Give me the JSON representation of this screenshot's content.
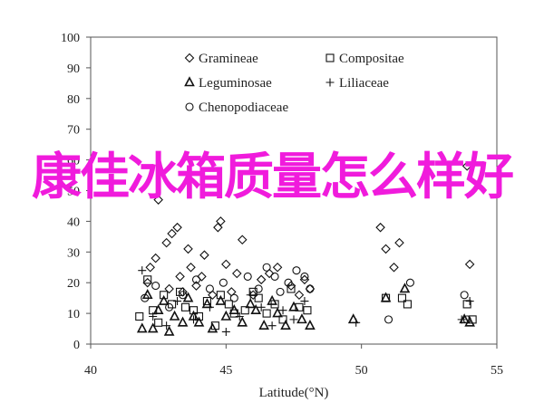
{
  "overlay_title": "康佳冰箱质量怎么样好",
  "chart_data": {
    "type": "scatter",
    "title": "",
    "xlabel": "Latitude(°N)",
    "ylabel": "",
    "xlim": [
      40,
      55
    ],
    "ylim": [
      0,
      100
    ],
    "xticks": [
      "40",
      "45",
      "50",
      "55"
    ],
    "yticks": [
      "0",
      "10",
      "20",
      "30",
      "40",
      "50",
      "60",
      "70",
      "80",
      "90",
      "100"
    ],
    "grid": false,
    "legend_placement": "top-left",
    "series": [
      {
        "name": "Gramineae",
        "marker": "diamond",
        "points": [
          [
            42.1,
            20
          ],
          [
            42.2,
            25
          ],
          [
            42.4,
            28
          ],
          [
            42.5,
            47
          ],
          [
            42.8,
            33
          ],
          [
            42.9,
            18
          ],
          [
            43.0,
            36
          ],
          [
            43.2,
            38
          ],
          [
            43.3,
            22
          ],
          [
            43.4,
            17
          ],
          [
            43.6,
            31
          ],
          [
            43.7,
            25
          ],
          [
            43.9,
            19
          ],
          [
            44.1,
            22
          ],
          [
            44.2,
            29
          ],
          [
            44.5,
            16
          ],
          [
            44.7,
            38
          ],
          [
            44.8,
            40
          ],
          [
            45.0,
            26
          ],
          [
            45.2,
            17
          ],
          [
            45.4,
            23
          ],
          [
            45.6,
            34
          ],
          [
            46.0,
            16
          ],
          [
            46.3,
            21
          ],
          [
            46.6,
            23
          ],
          [
            46.9,
            25
          ],
          [
            47.4,
            19
          ],
          [
            47.7,
            16
          ],
          [
            47.9,
            21
          ],
          [
            48.1,
            18
          ],
          [
            50.7,
            38
          ],
          [
            50.9,
            31
          ],
          [
            51.2,
            25
          ],
          [
            51.4,
            33
          ],
          [
            53.9,
            58
          ],
          [
            54.0,
            26
          ]
        ]
      },
      {
        "name": "Compositae",
        "marker": "square",
        "points": [
          [
            41.8,
            9
          ],
          [
            42.1,
            21
          ],
          [
            42.3,
            11
          ],
          [
            42.5,
            7
          ],
          [
            42.7,
            16
          ],
          [
            43.0,
            13
          ],
          [
            43.3,
            17
          ],
          [
            43.5,
            12
          ],
          [
            43.8,
            11
          ],
          [
            44.0,
            9
          ],
          [
            44.3,
            14
          ],
          [
            44.6,
            6
          ],
          [
            44.8,
            16
          ],
          [
            45.1,
            13
          ],
          [
            45.3,
            10
          ],
          [
            45.7,
            11
          ],
          [
            46.0,
            17
          ],
          [
            46.2,
            15
          ],
          [
            46.5,
            10
          ],
          [
            46.8,
            13
          ],
          [
            47.1,
            8
          ],
          [
            47.4,
            18
          ],
          [
            47.7,
            12
          ],
          [
            48.0,
            11
          ],
          [
            50.9,
            15
          ],
          [
            51.5,
            15
          ],
          [
            51.7,
            13
          ],
          [
            53.9,
            13
          ],
          [
            54.1,
            8
          ]
        ]
      },
      {
        "name": "Leguminosae",
        "marker": "triangle",
        "points": [
          [
            41.9,
            5
          ],
          [
            42.1,
            16
          ],
          [
            42.3,
            5
          ],
          [
            42.5,
            11
          ],
          [
            42.7,
            14
          ],
          [
            42.9,
            4
          ],
          [
            43.1,
            9
          ],
          [
            43.4,
            7
          ],
          [
            43.6,
            15
          ],
          [
            43.8,
            9
          ],
          [
            44.0,
            7
          ],
          [
            44.3,
            13
          ],
          [
            44.5,
            5
          ],
          [
            44.8,
            14
          ],
          [
            45.0,
            9
          ],
          [
            45.3,
            11
          ],
          [
            45.6,
            7
          ],
          [
            45.9,
            13
          ],
          [
            46.1,
            11
          ],
          [
            46.4,
            6
          ],
          [
            46.7,
            14
          ],
          [
            46.9,
            10
          ],
          [
            47.2,
            6
          ],
          [
            47.5,
            12
          ],
          [
            47.8,
            8
          ],
          [
            48.1,
            6
          ],
          [
            49.7,
            8
          ],
          [
            50.9,
            15
          ],
          [
            51.6,
            18
          ],
          [
            53.8,
            8
          ],
          [
            54.0,
            7
          ]
        ]
      },
      {
        "name": "Liliaceae",
        "marker": "plus",
        "points": [
          [
            41.9,
            24
          ],
          [
            42.3,
            9
          ],
          [
            42.8,
            6
          ],
          [
            43.2,
            14
          ],
          [
            43.8,
            8
          ],
          [
            44.4,
            12
          ],
          [
            45.0,
            4
          ],
          [
            45.5,
            9
          ],
          [
            45.9,
            16
          ],
          [
            46.3,
            12
          ],
          [
            46.7,
            6
          ],
          [
            47.1,
            11
          ],
          [
            47.5,
            8
          ],
          [
            47.9,
            14
          ],
          [
            49.8,
            7
          ],
          [
            53.7,
            8
          ],
          [
            54.0,
            14
          ]
        ]
      },
      {
        "name": "Chenopodiaceae",
        "marker": "circle",
        "points": [
          [
            42.0,
            15
          ],
          [
            42.4,
            19
          ],
          [
            42.9,
            12
          ],
          [
            43.4,
            16
          ],
          [
            43.9,
            21
          ],
          [
            44.4,
            18
          ],
          [
            44.9,
            20
          ],
          [
            45.3,
            15
          ],
          [
            45.8,
            22
          ],
          [
            46.2,
            18
          ],
          [
            46.5,
            25
          ],
          [
            46.8,
            22
          ],
          [
            47.0,
            17
          ],
          [
            47.3,
            20
          ],
          [
            47.6,
            24
          ],
          [
            47.9,
            22
          ],
          [
            48.1,
            18
          ],
          [
            51.0,
            8
          ],
          [
            51.8,
            20
          ],
          [
            53.8,
            16
          ],
          [
            53.9,
            8
          ]
        ]
      }
    ]
  }
}
